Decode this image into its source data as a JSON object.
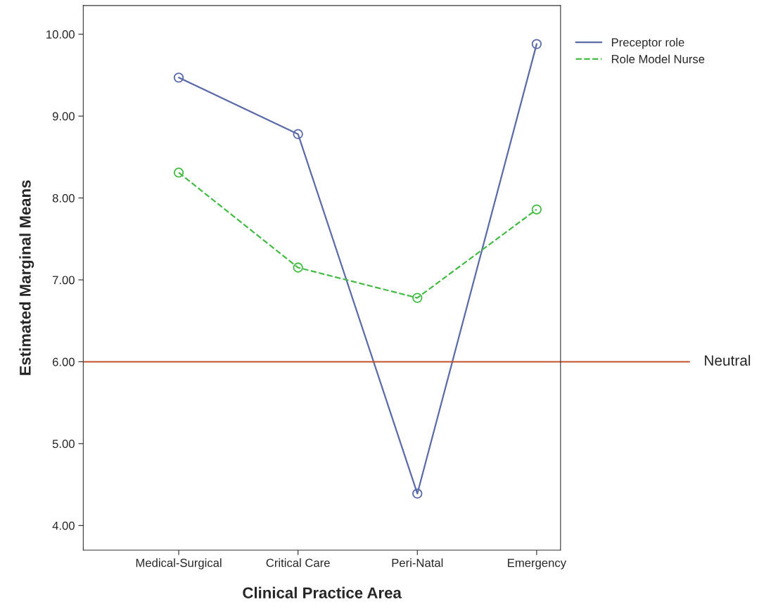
{
  "chart_data": {
    "type": "line",
    "xlabel": "Clinical Practice Area",
    "ylabel": "Estimated Marginal Means",
    "categories": [
      "Medical-Surgical",
      "Critical Care",
      "Peri-Natal",
      "Emergency"
    ],
    "series": [
      {
        "name": "Preceptor role",
        "color": "#5b6aa8",
        "values": [
          9.47,
          8.78,
          4.39,
          9.88
        ],
        "line_style": "solid"
      },
      {
        "name": "Role Model Nurse",
        "color": "#44bb44",
        "values": [
          8.31,
          7.15,
          6.78,
          7.86
        ],
        "line_style": "dashed"
      }
    ],
    "marker": "circle",
    "ylim": [
      3.7,
      10.35
    ],
    "yticks": [
      {
        "value": 4,
        "label": "4.00"
      },
      {
        "value": 5,
        "label": "5.00"
      },
      {
        "value": 6,
        "label": "6.00"
      },
      {
        "value": 7,
        "label": "7.00"
      },
      {
        "value": 8,
        "label": "8.00"
      },
      {
        "value": 9,
        "label": "9.00"
      },
      {
        "value": 10,
        "label": "10.00"
      }
    ],
    "ref_lines": [
      {
        "axis": "y",
        "value": 6,
        "label": "Neutral",
        "color": "#c0522a",
        "line_style": "solid"
      }
    ],
    "grid": false,
    "legend": "top right"
  }
}
